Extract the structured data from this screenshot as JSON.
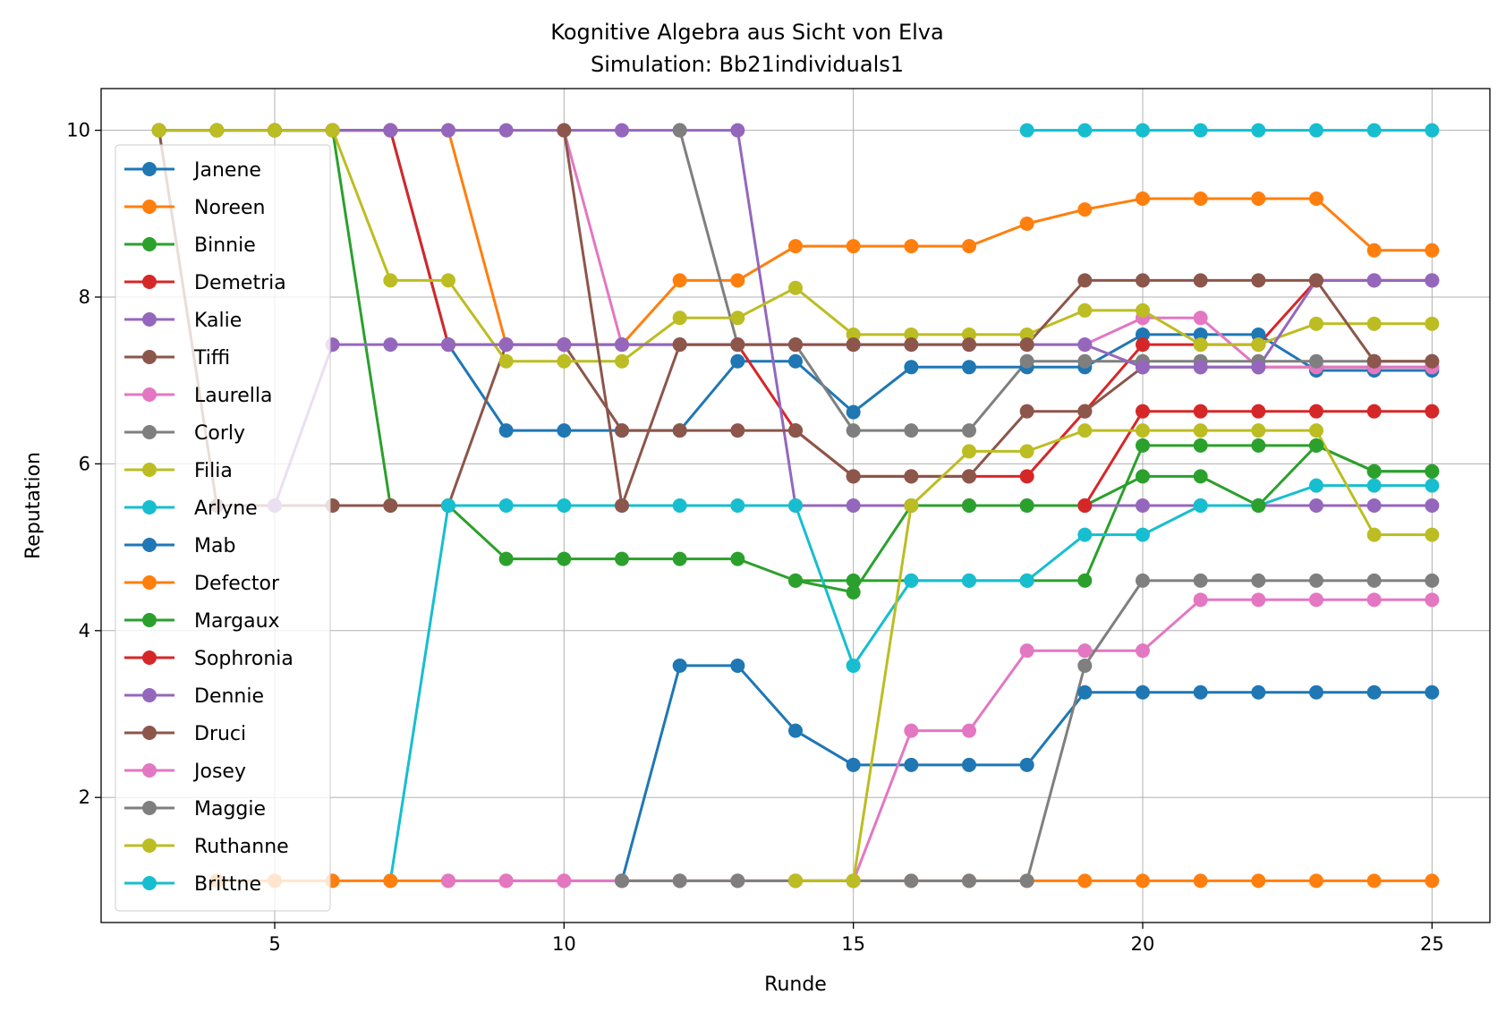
{
  "chart_data": {
    "type": "line",
    "title": "Kognitive Algebra aus Sicht von Elva",
    "subtitle": "Simulation: Bb21individuals1",
    "xlabel": "Runde",
    "ylabel": "Reputation",
    "xlim": [
      2,
      26
    ],
    "ylim": [
      0.5,
      10.5
    ],
    "xticks": [
      5,
      10,
      15,
      20,
      25
    ],
    "yticks": [
      2,
      4,
      6,
      8,
      10
    ],
    "grid": true,
    "legend_position": "left",
    "series": [
      {
        "name": "Janene",
        "color": "#1f77b4",
        "x": [
          3,
          4,
          5,
          6,
          7,
          8,
          9,
          10,
          11,
          12,
          13,
          14,
          15,
          16,
          17,
          18,
          19,
          20,
          21,
          22,
          23,
          24,
          25
        ],
        "y": [
          10,
          10,
          10,
          10,
          10,
          7.43,
          6.4,
          6.4,
          6.4,
          6.4,
          7.23,
          7.23,
          6.62,
          7.16,
          7.16,
          7.16,
          7.16,
          7.55,
          7.55,
          7.55,
          7.12,
          7.12,
          7.12
        ]
      },
      {
        "name": "Noreen",
        "color": "#ff7f0e",
        "x": [
          3,
          4,
          5,
          6,
          7,
          8,
          9,
          10,
          11,
          12,
          13,
          14,
          15,
          16,
          17,
          18,
          19,
          20,
          21,
          22,
          23,
          24,
          25
        ],
        "y": [
          10,
          10,
          10,
          10,
          10,
          10,
          7.43,
          7.43,
          7.43,
          8.2,
          8.2,
          8.61,
          8.61,
          8.61,
          8.61,
          8.88,
          9.05,
          9.18,
          9.18,
          9.18,
          9.18,
          8.56,
          8.56
        ]
      },
      {
        "name": "Binnie",
        "color": "#2ca02c",
        "x": [
          3,
          4,
          5,
          6,
          7,
          8,
          9,
          10,
          11,
          12,
          13,
          14,
          15,
          16,
          17,
          18,
          19,
          20,
          21,
          22,
          23,
          24,
          25
        ],
        "y": [
          10,
          10,
          10,
          10,
          5.5,
          5.5,
          4.86,
          4.86,
          4.86,
          4.86,
          4.86,
          4.6,
          4.6,
          4.6,
          4.6,
          4.6,
          4.6,
          6.22,
          6.22,
          6.22,
          6.22,
          5.91,
          5.91
        ]
      },
      {
        "name": "Demetria",
        "color": "#d62728",
        "x": [
          5,
          6,
          7,
          8,
          9,
          10,
          11,
          12,
          13,
          14,
          15,
          16,
          17,
          18,
          19,
          20,
          21,
          22,
          23,
          24,
          25
        ],
        "y": [
          10,
          10,
          10,
          7.43,
          7.43,
          7.43,
          7.43,
          7.43,
          7.43,
          6.4,
          5.85,
          5.85,
          5.85,
          5.85,
          6.63,
          7.43,
          7.43,
          7.43,
          8.2,
          8.2,
          8.2
        ]
      },
      {
        "name": "Kalie",
        "color": "#9467bd",
        "x": [
          6,
          7,
          8,
          9,
          10,
          11,
          12,
          13,
          14,
          15,
          16,
          17,
          18,
          19,
          20,
          21,
          22,
          23,
          24,
          25
        ],
        "y": [
          10,
          10,
          10,
          10,
          10,
          10,
          10,
          10,
          5.5,
          5.5,
          5.5,
          5.5,
          5.5,
          5.5,
          5.5,
          5.5,
          5.5,
          5.5,
          5.5,
          5.5
        ]
      },
      {
        "name": "Tiffi",
        "color": "#8c564b",
        "x": [
          3,
          4,
          5,
          6,
          7,
          8,
          9,
          10,
          11,
          12,
          13,
          14,
          15,
          16,
          17,
          18,
          19,
          20,
          21,
          22,
          23,
          24,
          25
        ],
        "y": [
          10,
          5.5,
          5.5,
          5.5,
          5.5,
          5.5,
          7.43,
          7.43,
          6.4,
          6.4,
          6.4,
          6.4,
          5.85,
          5.85,
          5.85,
          6.63,
          6.63,
          7.16,
          7.16,
          7.16,
          7.16,
          7.16,
          7.16
        ]
      },
      {
        "name": "Laurella",
        "color": "#e377c2",
        "x": [
          10,
          11,
          12,
          13,
          14,
          15,
          16,
          17,
          18,
          19,
          20,
          21,
          22,
          23,
          24,
          25
        ],
        "y": [
          10,
          7.43,
          7.43,
          7.43,
          7.43,
          7.43,
          7.43,
          7.43,
          7.43,
          7.43,
          7.75,
          7.75,
          7.16,
          7.16,
          7.16,
          7.16
        ]
      },
      {
        "name": "Corly",
        "color": "#7f7f7f",
        "x": [
          12,
          13,
          14,
          15,
          16,
          17,
          18,
          19,
          20,
          21,
          22,
          23,
          24,
          25
        ],
        "y": [
          10,
          7.43,
          7.43,
          6.4,
          6.4,
          6.4,
          7.23,
          7.23,
          7.23,
          7.23,
          7.23,
          7.23,
          7.23,
          7.23
        ]
      },
      {
        "name": "Filia",
        "color": "#bcbd22",
        "x": [
          3,
          4,
          5,
          6,
          7,
          8,
          9,
          10,
          11,
          12,
          13,
          14,
          15,
          16,
          17,
          18,
          19,
          20,
          21,
          22,
          23,
          24,
          25
        ],
        "y": [
          10,
          10,
          10,
          10,
          8.2,
          8.2,
          7.23,
          7.23,
          7.23,
          7.75,
          7.75,
          8.11,
          7.55,
          7.55,
          7.55,
          7.55,
          7.84,
          7.84,
          7.43,
          7.43,
          7.68,
          7.68,
          7.68
        ]
      },
      {
        "name": "Arlyne",
        "color": "#17becf",
        "x": [
          7,
          8,
          9,
          10,
          11,
          12,
          13,
          14,
          15,
          16,
          17,
          18,
          19,
          20,
          21,
          22,
          23,
          24,
          25
        ],
        "y": [
          1,
          5.5,
          5.5,
          5.5,
          5.5,
          5.5,
          5.5,
          5.5,
          3.58,
          4.6,
          4.6,
          4.6,
          5.15,
          5.15,
          5.5,
          5.5,
          5.74,
          5.74,
          5.74
        ]
      },
      {
        "name": "Mab",
        "color": "#1f77b4",
        "x": [
          11,
          12,
          13,
          14,
          15,
          16,
          17,
          18,
          19,
          20,
          21,
          22,
          23,
          24,
          25
        ],
        "y": [
          1,
          3.58,
          3.58,
          2.8,
          2.39,
          2.39,
          2.39,
          2.39,
          3.26,
          3.26,
          3.26,
          3.26,
          3.26,
          3.26,
          3.26
        ]
      },
      {
        "name": "Defector",
        "color": "#ff7f0e",
        "x": [
          4,
          5,
          6,
          7,
          8,
          9,
          10,
          11,
          12,
          13,
          14,
          15,
          16,
          17,
          18,
          19,
          20,
          21,
          22,
          23,
          24,
          25
        ],
        "y": [
          1,
          1,
          1,
          1,
          1,
          1,
          1,
          1,
          1,
          1,
          1,
          1,
          1,
          1,
          1,
          1,
          1,
          1,
          1,
          1,
          1,
          1
        ]
      },
      {
        "name": "Margaux",
        "color": "#2ca02c",
        "x": [
          14,
          15,
          16,
          17,
          18,
          19,
          20,
          21,
          22,
          23,
          24,
          25
        ],
        "y": [
          4.6,
          4.46,
          5.5,
          5.5,
          5.5,
          5.5,
          5.85,
          5.85,
          5.5,
          6.22,
          5.91,
          5.91
        ]
      },
      {
        "name": "Sophronia",
        "color": "#d62728",
        "x": [
          19,
          20,
          21,
          22,
          23,
          24,
          25
        ],
        "y": [
          5.5,
          6.63,
          6.63,
          6.63,
          6.63,
          6.63,
          6.63
        ]
      },
      {
        "name": "Dennie",
        "color": "#9467bd",
        "x": [
          5,
          6,
          7,
          8,
          9,
          10,
          11,
          12,
          13,
          14,
          15,
          16,
          17,
          18,
          19,
          20,
          21,
          22,
          23,
          24,
          25
        ],
        "y": [
          5.5,
          7.43,
          7.43,
          7.43,
          7.43,
          7.43,
          7.43,
          7.43,
          7.43,
          7.43,
          7.43,
          7.43,
          7.43,
          7.43,
          7.43,
          7.16,
          7.16,
          7.16,
          8.2,
          8.2,
          8.2
        ]
      },
      {
        "name": "Druci",
        "color": "#8c564b",
        "x": [
          10,
          11,
          12,
          13,
          14,
          15,
          16,
          17,
          18,
          19,
          20,
          21,
          22,
          23,
          24,
          25
        ],
        "y": [
          10,
          5.5,
          7.43,
          7.43,
          7.43,
          7.43,
          7.43,
          7.43,
          7.43,
          8.2,
          8.2,
          8.2,
          8.2,
          8.2,
          7.23,
          7.23
        ]
      },
      {
        "name": "Josey",
        "color": "#e377c2",
        "x": [
          8,
          9,
          10,
          11,
          12,
          13,
          14,
          15,
          16,
          17,
          18,
          19,
          20,
          21,
          22,
          23,
          24,
          25
        ],
        "y": [
          1,
          1,
          1,
          1,
          1,
          1,
          1,
          1,
          2.8,
          2.8,
          3.76,
          3.76,
          3.76,
          4.37,
          4.37,
          4.37,
          4.37,
          4.37
        ]
      },
      {
        "name": "Maggie",
        "color": "#7f7f7f",
        "x": [
          11,
          12,
          13,
          14,
          15,
          16,
          17,
          18,
          19,
          20,
          21,
          22,
          23,
          24,
          25
        ],
        "y": [
          1,
          1,
          1,
          1,
          1,
          1,
          1,
          1,
          3.58,
          4.6,
          4.6,
          4.6,
          4.6,
          4.6,
          4.6
        ]
      },
      {
        "name": "Ruthanne",
        "color": "#bcbd22",
        "x": [
          14,
          15,
          16,
          17,
          18,
          19,
          20,
          21,
          22,
          23,
          24,
          25
        ],
        "y": [
          1,
          1,
          5.5,
          6.15,
          6.15,
          6.4,
          6.4,
          6.4,
          6.4,
          6.4,
          5.15,
          5.15
        ]
      },
      {
        "name": "Brittne",
        "color": "#17becf",
        "x": [
          18,
          19,
          20,
          21,
          22,
          23,
          24,
          25
        ],
        "y": [
          10,
          10,
          10,
          10,
          10,
          10,
          10,
          10
        ]
      }
    ]
  }
}
